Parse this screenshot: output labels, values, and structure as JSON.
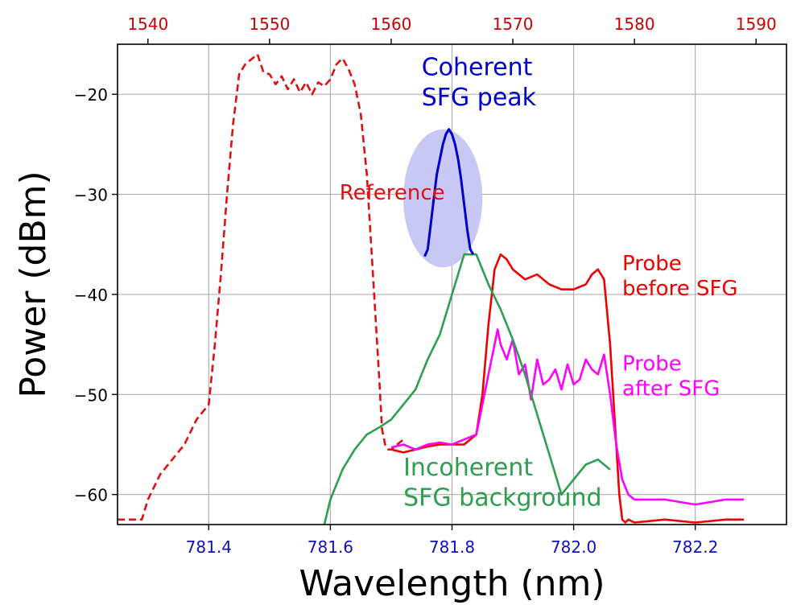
{
  "chart_data": {
    "type": "line",
    "xlabel": "Wavelength (nm)",
    "ylabel": "Power (dBm)",
    "grid": true,
    "xlim": [
      781.25,
      782.35
    ],
    "ylim": [
      -63,
      -15
    ],
    "x_ticks": [
      781.4,
      781.6,
      781.8,
      782.0,
      782.2
    ],
    "x_tick_labels": [
      "781.4",
      "781.6",
      "781.8",
      "782.0",
      "782.2"
    ],
    "y_ticks": [
      -60,
      -50,
      -40,
      -30,
      -20
    ],
    "y_tick_labels": [
      "−60",
      "−50",
      "−40",
      "−30",
      "−20"
    ],
    "top_axis": {
      "unit": "nm",
      "ticks": [
        1540,
        1550,
        1560,
        1570,
        1580,
        1590
      ],
      "tick_labels": [
        "1540",
        "1550",
        "1560",
        "1570",
        "1580",
        "1590"
      ],
      "mapping": {
        "top_a": 1540,
        "bottom_a": 781.3,
        "top_b": 1590,
        "bottom_b": 782.3
      }
    },
    "colors": {
      "reference": "#dd1111",
      "probe_before": "#ee0000",
      "probe_after": "#ff00ff",
      "coherent": "#0000cc",
      "incoherent": "#2e9e4f",
      "ellipse": "#c8c8f5",
      "grid": "#b0b0b0",
      "top_ticks": "#cc0000",
      "bottom_ticks": "#1010bb"
    },
    "series": [
      {
        "name": "Reference",
        "style": "dashed",
        "color_key": "reference",
        "x": [
          781.25,
          781.27,
          781.29,
          781.3,
          781.32,
          781.34,
          781.36,
          781.38,
          781.4,
          781.41,
          781.42,
          781.43,
          781.44,
          781.45,
          781.46,
          781.47,
          781.48,
          781.49,
          781.5,
          781.51,
          781.52,
          781.53,
          781.54,
          781.55,
          781.56,
          781.57,
          781.58,
          781.59,
          781.6,
          781.61,
          781.62,
          781.63,
          781.64,
          781.65,
          781.66,
          781.67,
          781.68,
          781.685,
          781.69,
          781.695,
          781.7,
          781.71,
          781.72
        ],
        "y": [
          -62.5,
          -62.5,
          -62.5,
          -60.5,
          -58,
          -56.5,
          -55,
          -52.5,
          -51,
          -45,
          -38,
          -30,
          -23,
          -18,
          -17,
          -16.5,
          -16,
          -17.8,
          -18,
          -19,
          -18.2,
          -19.5,
          -18.5,
          -19.8,
          -18.8,
          -20,
          -18.8,
          -19.2,
          -18.5,
          -17,
          -16.4,
          -17.5,
          -19,
          -22,
          -28,
          -38,
          -48,
          -53.5,
          -55,
          -55.5,
          -55.5,
          -55,
          -54.5
        ]
      },
      {
        "name": "Probe before SFG",
        "style": "solid",
        "color_key": "probe_before",
        "x": [
          781.7,
          781.72,
          781.74,
          781.76,
          781.78,
          781.8,
          781.82,
          781.84,
          781.85,
          781.86,
          781.87,
          781.88,
          781.89,
          781.9,
          781.92,
          781.94,
          781.96,
          781.98,
          782.0,
          782.02,
          782.03,
          782.04,
          782.05,
          782.06,
          782.07,
          782.075,
          782.08,
          782.085,
          782.09,
          782.1,
          782.15,
          782.2,
          782.25,
          782.28
        ],
        "y": [
          -55.5,
          -55.8,
          -55.5,
          -55.2,
          -55,
          -55,
          -55,
          -54,
          -50,
          -43,
          -37.5,
          -36,
          -36.5,
          -37.5,
          -38.5,
          -38,
          -39,
          -39.5,
          -39.5,
          -39,
          -38,
          -37.5,
          -38.5,
          -45,
          -55,
          -60,
          -62.5,
          -62.8,
          -62.5,
          -62.8,
          -62.5,
          -62.8,
          -62.5,
          -62.5
        ]
      },
      {
        "name": "Probe after SFG",
        "style": "solid",
        "color_key": "probe_after",
        "x": [
          781.7,
          781.72,
          781.74,
          781.76,
          781.78,
          781.8,
          781.82,
          781.84,
          781.85,
          781.86,
          781.87,
          781.875,
          781.88,
          781.89,
          781.9,
          781.91,
          781.92,
          781.93,
          781.94,
          781.95,
          781.96,
          781.97,
          781.98,
          781.99,
          782.0,
          782.01,
          782.02,
          782.03,
          782.04,
          782.05,
          782.06,
          782.07,
          782.08,
          782.09,
          782.1,
          782.15,
          782.2,
          782.25,
          782.28
        ],
        "y": [
          -55.3,
          -55,
          -55.5,
          -55,
          -54.8,
          -55,
          -54.5,
          -54,
          -51,
          -48,
          -45,
          -43.5,
          -45,
          -46.5,
          -44.5,
          -48,
          -47,
          -50.5,
          -46.5,
          -49,
          -48.5,
          -47.5,
          -49.5,
          -47,
          -49,
          -48.5,
          -46.5,
          -47.5,
          -48,
          -46,
          -50,
          -55,
          -58.5,
          -60,
          -60.5,
          -60.5,
          -61,
          -60.5,
          -60.5
        ]
      },
      {
        "name": "Incoherent SFG background",
        "style": "solid",
        "color_key": "incoherent",
        "x": [
          781.59,
          781.6,
          781.62,
          781.64,
          781.66,
          781.68,
          781.7,
          781.72,
          781.74,
          781.75,
          781.76,
          781.78,
          781.8,
          781.82,
          781.84,
          781.86,
          781.88,
          781.9,
          781.92,
          781.94,
          781.96,
          781.98,
          782.0,
          782.02,
          782.04,
          782.06
        ],
        "y": [
          -63,
          -60.5,
          -57.5,
          -55.5,
          -54,
          -53.3,
          -52.5,
          -51,
          -49.5,
          -48,
          -46.5,
          -44,
          -40,
          -36,
          -36,
          -39,
          -41.5,
          -44.5,
          -48,
          -52,
          -56,
          -60,
          -58.5,
          -57,
          -56.5,
          -57.5
        ]
      },
      {
        "name": "Coherent SFG peak",
        "style": "solid",
        "color_key": "coherent",
        "x": [
          781.755,
          781.76,
          781.765,
          781.77,
          781.775,
          781.78,
          781.785,
          781.79,
          781.795,
          781.8,
          781.805,
          781.81,
          781.815,
          781.82,
          781.825,
          781.83,
          781.835
        ],
        "y": [
          -36.2,
          -35.5,
          -33,
          -30.5,
          -28,
          -26.5,
          -25,
          -24,
          -23.5,
          -24,
          -25,
          -26.5,
          -28.5,
          -31,
          -33.5,
          -35.5,
          -36
        ]
      }
    ],
    "annotations": [
      {
        "text": "Reference",
        "color_key": "reference",
        "x": 781.615,
        "y": -30.5
      },
      {
        "text": "Coherent",
        "color_key": "coherent",
        "x": 781.75,
        "y": -18.1
      },
      {
        "text": "SFG peak",
        "color_key": "coherent",
        "x": 781.75,
        "y": -21.1
      },
      {
        "text": "Probe",
        "color_key": "probe_before",
        "x": 782.08,
        "y": -37.6
      },
      {
        "text": "before SFG",
        "color_key": "probe_before",
        "x": 782.08,
        "y": -40.1
      },
      {
        "text": "Probe",
        "color_key": "probe_after",
        "x": 782.08,
        "y": -47.6
      },
      {
        "text": "after SFG",
        "color_key": "probe_after",
        "x": 782.08,
        "y": -50.1
      },
      {
        "text": "Incoherent",
        "color_key": "incoherent",
        "x": 781.72,
        "y": -58.1
      },
      {
        "text": "SFG background",
        "color_key": "incoherent",
        "x": 781.72,
        "y": -61.1
      }
    ],
    "highlight_ellipse": {
      "cx": 781.785,
      "cy": -30.4,
      "rx": 0.065,
      "ry": 6.9,
      "color_key": "ellipse"
    }
  }
}
